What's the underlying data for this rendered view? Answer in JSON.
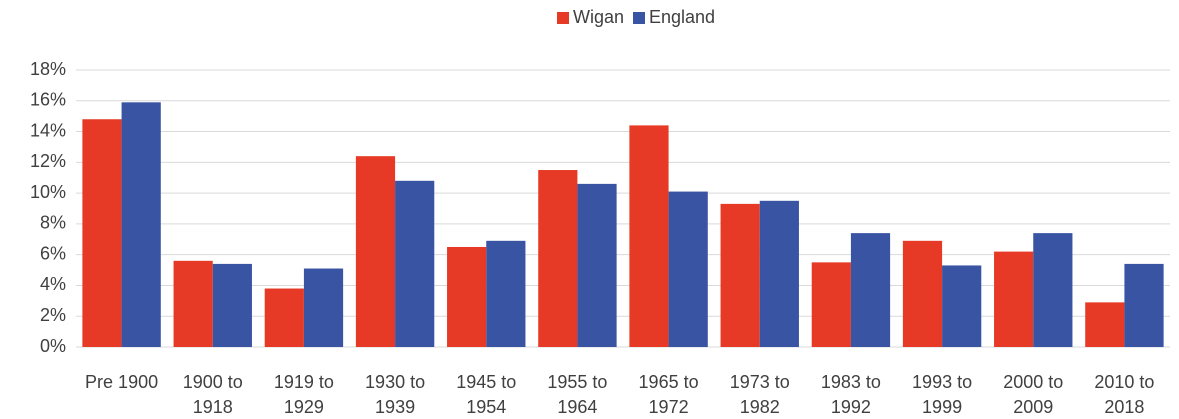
{
  "chart_data": {
    "type": "bar",
    "categories": [
      "Pre 1900",
      "1900 to 1918",
      "1919 to 1929",
      "1930 to 1939",
      "1945 to 1954",
      "1955 to 1964",
      "1965 to 1972",
      "1973 to 1982",
      "1983 to 1992",
      "1993 to 1999",
      "2000 to 2009",
      "2010 to 2018"
    ],
    "series": [
      {
        "name": "Wigan",
        "color": "#e63a26",
        "values": [
          14.8,
          5.6,
          3.8,
          12.4,
          6.5,
          11.5,
          14.4,
          9.3,
          5.5,
          6.9,
          6.2,
          2.9
        ]
      },
      {
        "name": "England",
        "color": "#3a54a4",
        "values": [
          15.9,
          5.4,
          5.1,
          10.8,
          6.9,
          10.6,
          10.1,
          9.5,
          7.4,
          5.3,
          7.4,
          5.4
        ]
      }
    ],
    "ylim": [
      0,
      18
    ],
    "yticks": [
      {
        "value": 0,
        "label": "0%"
      },
      {
        "value": 2,
        "label": "2%"
      },
      {
        "value": 4,
        "label": "4%"
      },
      {
        "value": 6,
        "label": "6%"
      },
      {
        "value": 8,
        "label": "8%"
      },
      {
        "value": 10,
        "label": "10%"
      },
      {
        "value": 12,
        "label": "12%"
      },
      {
        "value": 14,
        "label": "14%"
      },
      {
        "value": 16,
        "label": "16%"
      },
      {
        "value": 18,
        "label": "18%"
      }
    ],
    "grid": true,
    "legend": "top"
  }
}
